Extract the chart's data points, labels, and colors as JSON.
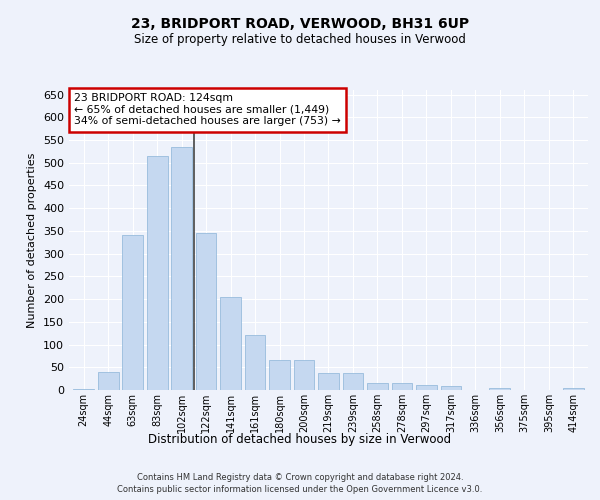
{
  "title": "23, BRIDPORT ROAD, VERWOOD, BH31 6UP",
  "subtitle": "Size of property relative to detached houses in Verwood",
  "xlabel": "Distribution of detached houses by size in Verwood",
  "ylabel": "Number of detached properties",
  "categories": [
    "24sqm",
    "44sqm",
    "63sqm",
    "83sqm",
    "102sqm",
    "122sqm",
    "141sqm",
    "161sqm",
    "180sqm",
    "200sqm",
    "219sqm",
    "239sqm",
    "258sqm",
    "278sqm",
    "297sqm",
    "317sqm",
    "336sqm",
    "356sqm",
    "375sqm",
    "395sqm",
    "414sqm"
  ],
  "values": [
    2,
    40,
    340,
    515,
    535,
    345,
    205,
    120,
    65,
    65,
    37,
    37,
    15,
    15,
    10,
    8,
    0,
    5,
    0,
    0,
    5
  ],
  "bar_color": "#c5d8f0",
  "bar_edge_color": "#8ab4d8",
  "highlight_bar_index": 5,
  "highlight_line_color": "#444444",
  "annotation_text": "23 BRIDPORT ROAD: 124sqm\n← 65% of detached houses are smaller (1,449)\n34% of semi-detached houses are larger (753) →",
  "annotation_box_color": "#ffffff",
  "annotation_box_edge_color": "#cc0000",
  "ylim": [
    0,
    660
  ],
  "yticks": [
    0,
    50,
    100,
    150,
    200,
    250,
    300,
    350,
    400,
    450,
    500,
    550,
    600,
    650
  ],
  "background_color": "#eef2fb",
  "grid_color": "#ffffff",
  "footer_line1": "Contains HM Land Registry data © Crown copyright and database right 2024.",
  "footer_line2": "Contains public sector information licensed under the Open Government Licence v3.0."
}
